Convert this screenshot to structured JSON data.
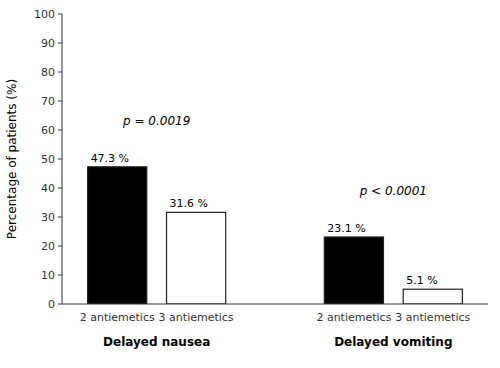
{
  "chart_data": {
    "type": "bar",
    "categories": [
      "2 antiemetics",
      "3 antiemetics",
      "2 antiemetics",
      "3 antiemetics"
    ],
    "values": [
      47.3,
      31.6,
      23.1,
      5.1
    ],
    "value_labels": [
      "47.3 %",
      "31.6 %",
      "23.1 %",
      "5.1 %"
    ],
    "colors": [
      "#000000",
      "#ffffff",
      "#000000",
      "#ffffff"
    ],
    "data_labels": true,
    "group_labels": [
      "Delayed nausea",
      "Delayed vomiting"
    ],
    "annotations": [
      "p = 0.0019",
      "p < 0.0001"
    ],
    "y_label": "Percentage of patients (%)",
    "ylim": [
      0,
      100
    ],
    "yticks": [
      0,
      10,
      20,
      30,
      40,
      50,
      60,
      70,
      80,
      90,
      100
    ],
    "grid": false
  }
}
